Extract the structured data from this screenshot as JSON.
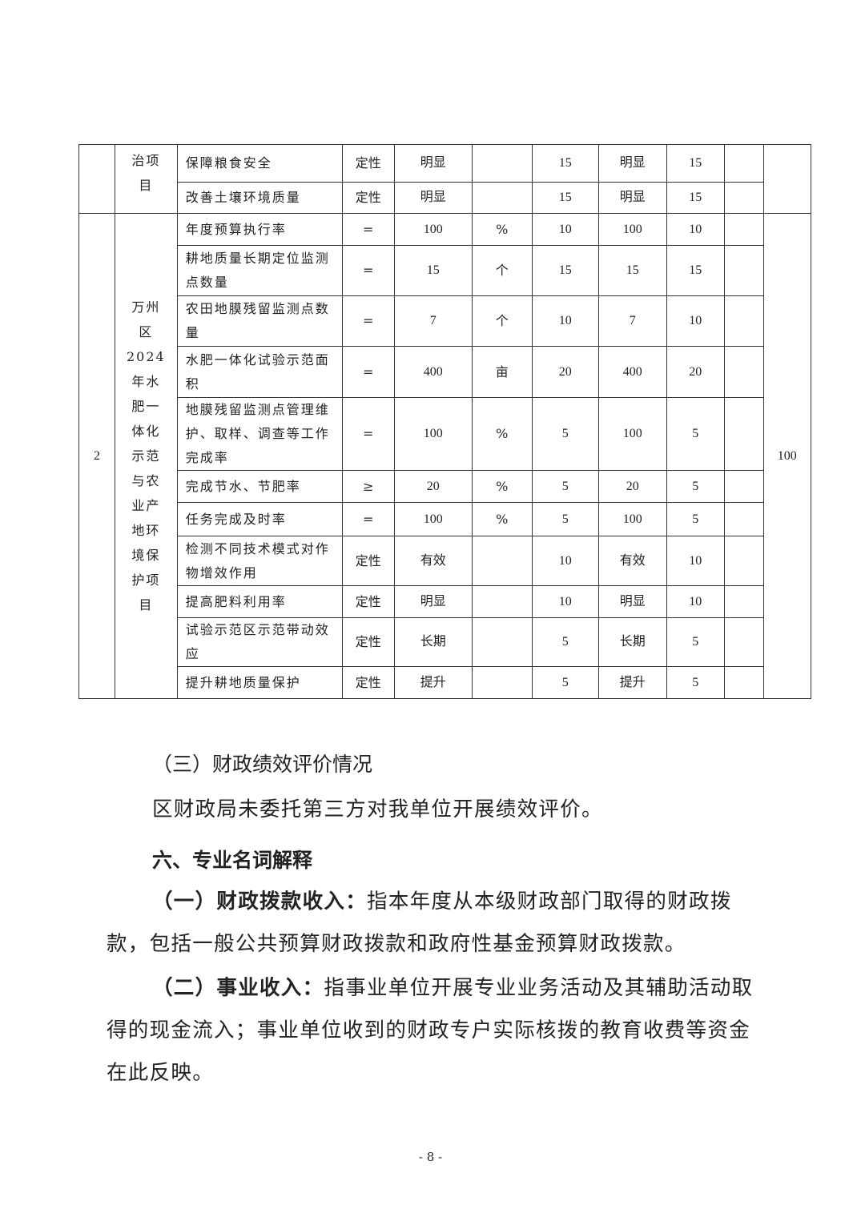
{
  "table": {
    "top_block": {
      "project_tail": "治项目",
      "rows": [
        {
          "indicator": "保障粮食安全",
          "op": "定性",
          "target": "明显",
          "unit": "",
          "weight": "15",
          "actual": "明显",
          "score": "15"
        },
        {
          "indicator": "改善土壤环境质量",
          "op": "定性",
          "target": "明显",
          "unit": "",
          "weight": "15",
          "actual": "明显",
          "score": "15"
        }
      ]
    },
    "block2": {
      "no": "2",
      "project": "万州区2024年水肥一体化示范与农业产地环境保护项目",
      "total": "100",
      "rows": [
        {
          "indicator": "年度预算执行率",
          "op": "=",
          "target": "100",
          "unit": "%",
          "weight": "10",
          "actual": "100",
          "score": "10"
        },
        {
          "indicator": "耕地质量长期定位监测点数量",
          "op": "=",
          "target": "15",
          "unit": "个",
          "weight": "15",
          "actual": "15",
          "score": "15"
        },
        {
          "indicator": "农田地膜残留监测点数量",
          "op": "=",
          "target": "7",
          "unit": "个",
          "weight": "10",
          "actual": "7",
          "score": "10"
        },
        {
          "indicator": "水肥一体化试验示范面积",
          "op": "=",
          "target": "400",
          "unit": "亩",
          "weight": "20",
          "actual": "400",
          "score": "20"
        },
        {
          "indicator": "地膜残留监测点管理维护、取样、调查等工作完成率",
          "op": "=",
          "target": "100",
          "unit": "%",
          "weight": "5",
          "actual": "100",
          "score": "5"
        },
        {
          "indicator": "完成节水、节肥率",
          "op": "≥",
          "target": "20",
          "unit": "%",
          "weight": "5",
          "actual": "20",
          "score": "5"
        },
        {
          "indicator": "任务完成及时率",
          "op": "=",
          "target": "100",
          "unit": "%",
          "weight": "5",
          "actual": "100",
          "score": "5"
        },
        {
          "indicator": "检测不同技术模式对作物增效作用",
          "op": "定性",
          "target": "有效",
          "unit": "",
          "weight": "10",
          "actual": "有效",
          "score": "10"
        },
        {
          "indicator": "提高肥料利用率",
          "op": "定性",
          "target": "明显",
          "unit": "",
          "weight": "10",
          "actual": "明显",
          "score": "10"
        },
        {
          "indicator": "试验示范区示范带动效应",
          "op": "定性",
          "target": "长期",
          "unit": "",
          "weight": "5",
          "actual": "长期",
          "score": "5"
        },
        {
          "indicator": "提升耕地质量保护",
          "op": "定性",
          "target": "提升",
          "unit": "",
          "weight": "5",
          "actual": "提升",
          "score": "5"
        }
      ]
    }
  },
  "section3_title": "（三）财政绩效评价情况",
  "section3_text": "区财政局未委托第三方对我单位开展绩效评价。",
  "section6_title": "六、专业名词解释",
  "terms": [
    {
      "label": "（一）财政拨款收入：",
      "text": "指本年度从本级财政部门取得的财政拨款，包括一般公共预算财政拨款和政府性基金预算财政拨款。"
    },
    {
      "label": "（二）事业收入：",
      "text": "指事业单位开展专业业务活动及其辅助活动取得的现金流入；事业单位收到的财政专户实际核拨的教育收费等资金在此反映。"
    }
  ],
  "page_number": "- 8 -"
}
